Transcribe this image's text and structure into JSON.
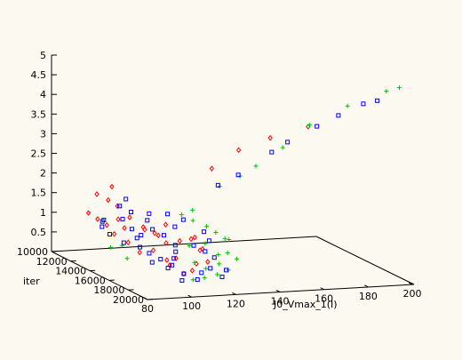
{
  "chart_data": {
    "type": "scatter",
    "title": "",
    "xlabel": "J0_Vmax_1(I)",
    "ylabel": "iter",
    "zlabel": "",
    "x_ticks": [
      "80",
      "100",
      "120",
      "140",
      "160",
      "180",
      "200"
    ],
    "y_ticks": [
      "10000",
      "12000",
      "14000",
      "16000",
      "18000",
      "20000"
    ],
    "z_ticks": [
      "0.5",
      "1",
      "1.5",
      "2",
      "2.5",
      "3",
      "3.5",
      "4",
      "4.5",
      "5"
    ],
    "xlim": [
      80,
      200
    ],
    "ylim": [
      10000,
      20000
    ],
    "zlim": [
      0,
      5
    ],
    "grid": false,
    "legend": "none",
    "series": [
      {
        "color": "#ff0000",
        "marker": "diamond",
        "points": [
          [
            140,
            19000,
            3.8
          ],
          [
            155,
            19500,
            4.1
          ],
          [
            130,
            18000,
            3.4
          ],
          [
            120,
            17500,
            2.9
          ],
          [
            90,
            12500,
            1.1
          ],
          [
            92,
            13000,
            1.0
          ],
          [
            95,
            13500,
            1.2
          ],
          [
            98,
            14000,
            1.3
          ],
          [
            100,
            13000,
            0.9
          ],
          [
            102,
            14500,
            1.1
          ],
          [
            105,
            15000,
            1.0
          ],
          [
            108,
            15500,
            0.8
          ],
          [
            110,
            15000,
            1.2
          ],
          [
            112,
            16000,
            0.9
          ],
          [
            115,
            16500,
            1.0
          ],
          [
            118,
            17000,
            0.8
          ],
          [
            96,
            15500,
            0.6
          ],
          [
            100,
            16000,
            0.7
          ],
          [
            104,
            16500,
            0.5
          ],
          [
            106,
            17000,
            0.6
          ],
          [
            94,
            11500,
            1.6
          ],
          [
            97,
            12000,
            1.5
          ],
          [
            99,
            12500,
            1.4
          ],
          [
            103,
            11000,
            1.7
          ],
          [
            107,
            13500,
            0.9
          ],
          [
            111,
            14000,
            0.8
          ],
          [
            113,
            17500,
            0.5
          ],
          [
            109,
            18000,
            0.4
          ],
          [
            101,
            17500,
            0.5
          ],
          [
            103,
            18500,
            0.4
          ],
          [
            116,
            18000,
            0.6
          ],
          [
            91,
            14000,
            0.9
          ],
          [
            93,
            15000,
            0.8
          ],
          [
            119,
            16500,
            0.7
          ],
          [
            121,
            15500,
            0.9
          ],
          [
            88,
            12000,
            1.2
          ]
        ]
      },
      {
        "color": "#00c000",
        "marker": "plus",
        "points": [
          [
            195,
            19800,
            5.0
          ],
          [
            190,
            19600,
            4.9
          ],
          [
            175,
            19000,
            4.5
          ],
          [
            160,
            18500,
            4.0
          ],
          [
            150,
            18000,
            3.4
          ],
          [
            140,
            17500,
            2.9
          ],
          [
            135,
            17000,
            2.6
          ],
          [
            128,
            16500,
            2.3
          ],
          [
            115,
            15500,
            1.5
          ],
          [
            118,
            16000,
            1.4
          ],
          [
            120,
            15500,
            1.6
          ],
          [
            122,
            16500,
            1.3
          ],
          [
            124,
            17000,
            1.2
          ],
          [
            126,
            17500,
            1.1
          ],
          [
            110,
            18000,
            0.6
          ],
          [
            113,
            18500,
            0.5
          ],
          [
            116,
            19000,
            0.4
          ],
          [
            119,
            18500,
            0.6
          ],
          [
            121,
            19000,
            0.5
          ],
          [
            123,
            17500,
            0.7
          ],
          [
            85,
            15000,
            0.7
          ],
          [
            88,
            15500,
            0.8
          ],
          [
            86,
            16500,
            0.6
          ],
          [
            105,
            19000,
            0.3
          ],
          [
            108,
            19500,
            0.4
          ],
          [
            125,
            18000,
            0.8
          ],
          [
            127,
            18500,
            0.7
          ],
          [
            112,
            17000,
            0.9
          ],
          [
            130,
            17000,
            1.0
          ],
          [
            117,
            17500,
            1.0
          ]
        ]
      },
      {
        "color": "#0000ff",
        "marker": "square",
        "points": [
          [
            185,
            19800,
            4.7
          ],
          [
            180,
            19500,
            4.6
          ],
          [
            170,
            19200,
            4.3
          ],
          [
            162,
            18800,
            4.0
          ],
          [
            150,
            18500,
            3.6
          ],
          [
            145,
            18000,
            3.3
          ],
          [
            132,
            17500,
            2.7
          ],
          [
            125,
            17000,
            2.4
          ],
          [
            105,
            12000,
            1.5
          ],
          [
            100,
            12500,
            1.4
          ],
          [
            103,
            13000,
            1.3
          ],
          [
            97,
            13500,
            1.2
          ],
          [
            95,
            12000,
            1.0
          ],
          [
            92,
            12500,
            0.9
          ],
          [
            99,
            14000,
            1.0
          ],
          [
            101,
            14500,
            0.9
          ],
          [
            104,
            15000,
            1.1
          ],
          [
            107,
            15500,
            1.0
          ],
          [
            110,
            16000,
            0.8
          ],
          [
            112,
            15500,
            1.2
          ],
          [
            108,
            16500,
            0.7
          ],
          [
            105,
            17000,
            0.6
          ],
          [
            102,
            17500,
            0.5
          ],
          [
            99,
            17000,
            0.6
          ],
          [
            96,
            16500,
            0.7
          ],
          [
            94,
            16000,
            0.8
          ],
          [
            114,
            17000,
            0.9
          ],
          [
            117,
            17500,
            0.8
          ],
          [
            119,
            18000,
            0.7
          ],
          [
            115,
            18500,
            0.5
          ],
          [
            111,
            18500,
            0.4
          ],
          [
            107,
            19000,
            0.3
          ],
          [
            103,
            18500,
            0.4
          ],
          [
            100,
            19000,
            0.3
          ],
          [
            98,
            18000,
            0.5
          ],
          [
            93,
            17500,
            0.6
          ],
          [
            121,
            17000,
            1.0
          ],
          [
            123,
            16000,
            1.1
          ],
          [
            118,
            15000,
            1.3
          ],
          [
            113,
            14500,
            1.4
          ],
          [
            109,
            13500,
            1.3
          ],
          [
            106,
            14000,
            1.2
          ],
          [
            90,
            13000,
            1.1
          ],
          [
            89,
            14000,
            0.9
          ],
          [
            91,
            15000,
            0.8
          ],
          [
            97,
            15000,
            0.9
          ],
          [
            120,
            19000,
            0.5
          ],
          [
            116,
            19500,
            0.4
          ]
        ]
      }
    ]
  }
}
